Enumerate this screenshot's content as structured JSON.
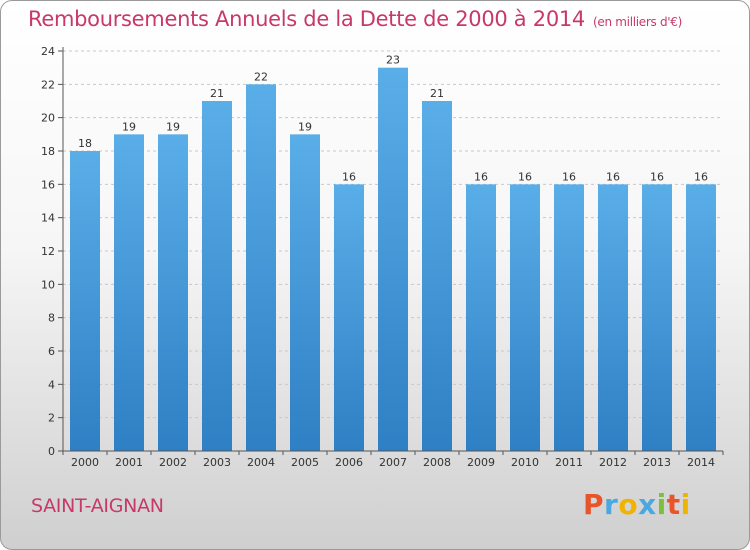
{
  "chart_data": {
    "type": "bar",
    "title": "Remboursements Annuels de la Dette de 2000 à 2014",
    "subtitle": "(en milliers d'€)",
    "categories": [
      "2000",
      "2001",
      "2002",
      "2003",
      "2004",
      "2005",
      "2006",
      "2007",
      "2008",
      "2009",
      "2010",
      "2011",
      "2012",
      "2013",
      "2014"
    ],
    "values": [
      18,
      19,
      19,
      21,
      22,
      19,
      16,
      23,
      21,
      16,
      16,
      16,
      16,
      16,
      16
    ],
    "xlabel": "",
    "ylabel": "",
    "ylim": [
      0,
      24
    ],
    "yticks": [
      0,
      2,
      4,
      6,
      8,
      10,
      12,
      14,
      16,
      18,
      20,
      22,
      24
    ],
    "grid": "horizontal dashed",
    "bar_color": "#4a9fe0"
  },
  "footer": {
    "commune": "SAINT-AIGNAN",
    "logo": "Proxiti",
    "logo_colors": [
      "#e8552a",
      "#4aa8e0",
      "#f0b400",
      "#4aa8e0",
      "#7cc040",
      "#e8552a",
      "#f0b400"
    ]
  }
}
